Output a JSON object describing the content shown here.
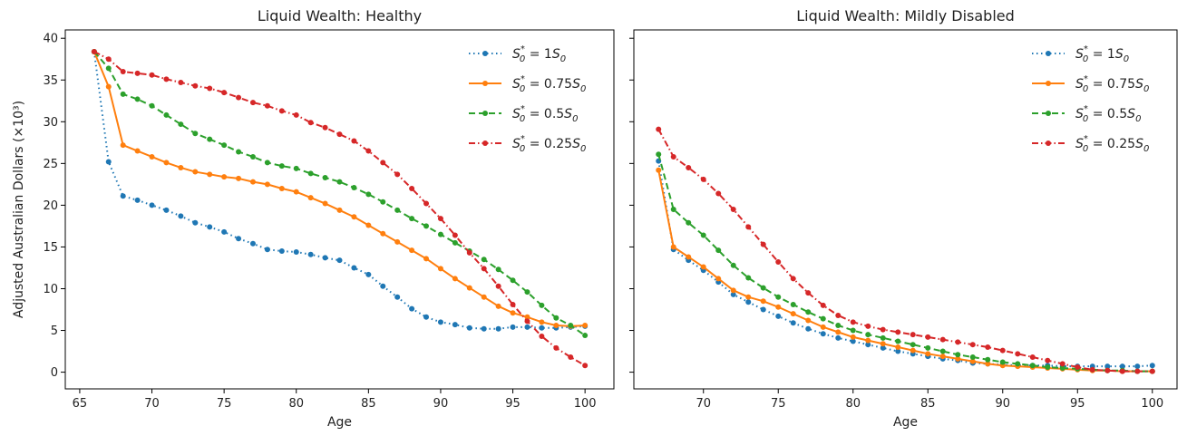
{
  "chart_data": [
    {
      "type": "line",
      "title": "Liquid Wealth: Healthy",
      "xlabel": "Age",
      "ylabel": "Adjusted Australian Dollars (×10³)",
      "xlim": [
        64,
        102
      ],
      "ylim": [
        -2,
        41
      ],
      "xticks": [
        65,
        70,
        75,
        80,
        85,
        90,
        95,
        100
      ],
      "yticks": [
        0,
        5,
        10,
        15,
        20,
        25,
        30,
        35,
        40
      ],
      "grid": false,
      "legend_position": "top-right",
      "x": [
        66,
        67,
        68,
        69,
        70,
        71,
        72,
        73,
        74,
        75,
        76,
        77,
        78,
        79,
        80,
        81,
        82,
        83,
        84,
        85,
        86,
        87,
        88,
        89,
        90,
        91,
        92,
        93,
        94,
        95,
        96,
        97,
        98,
        99,
        100
      ],
      "series": [
        {
          "name": "S0* = 1S0",
          "color": "#1f77b4",
          "dash": "1.5 3.5",
          "values": [
            38.4,
            25.2,
            21.1,
            20.6,
            20.0,
            19.4,
            18.7,
            17.9,
            17.4,
            16.8,
            16.0,
            15.4,
            14.7,
            14.5,
            14.4,
            14.1,
            13.7,
            13.4,
            12.5,
            11.7,
            10.3,
            9.0,
            7.6,
            6.6,
            6.0,
            5.7,
            5.3,
            5.2,
            5.2,
            5.4,
            5.4,
            5.3,
            5.3,
            5.4,
            5.5
          ]
        },
        {
          "name": "S0* = 0.75S0",
          "color": "#ff7f0e",
          "dash": "",
          "values": [
            38.4,
            34.2,
            27.2,
            26.5,
            25.8,
            25.1,
            24.5,
            24.0,
            23.7,
            23.4,
            23.2,
            22.8,
            22.5,
            22.0,
            21.6,
            20.9,
            20.2,
            19.4,
            18.6,
            17.6,
            16.6,
            15.6,
            14.6,
            13.6,
            12.4,
            11.2,
            10.1,
            9.0,
            7.9,
            7.1,
            6.6,
            6.0,
            5.6,
            5.5,
            5.6
          ]
        },
        {
          "name": "S0* = 0.5S0",
          "color": "#2ca02c",
          "dash": "7 4",
          "values": [
            38.4,
            36.4,
            33.3,
            32.7,
            31.9,
            30.8,
            29.7,
            28.6,
            27.9,
            27.2,
            26.4,
            25.8,
            25.1,
            24.7,
            24.4,
            23.8,
            23.3,
            22.8,
            22.1,
            21.3,
            20.4,
            19.4,
            18.4,
            17.5,
            16.5,
            15.5,
            14.5,
            13.5,
            12.3,
            11.0,
            9.6,
            8.0,
            6.5,
            5.6,
            4.4
          ]
        },
        {
          "name": "S0* = 0.25S0",
          "color": "#d62728",
          "dash": "7 3 1.5 3",
          "values": [
            38.4,
            37.5,
            36.0,
            35.8,
            35.6,
            35.1,
            34.7,
            34.3,
            34.0,
            33.5,
            32.9,
            32.3,
            31.9,
            31.3,
            30.8,
            29.9,
            29.3,
            28.5,
            27.7,
            26.5,
            25.1,
            23.7,
            22.0,
            20.2,
            18.4,
            16.4,
            14.3,
            12.4,
            10.3,
            8.1,
            6.1,
            4.3,
            2.9,
            1.8,
            0.8
          ]
        }
      ]
    },
    {
      "type": "line",
      "title": "Liquid Wealth: Mildly Disabled",
      "xlabel": "Age",
      "ylabel": "",
      "xlim": [
        65.35,
        101.65
      ],
      "ylim": [
        -2,
        41
      ],
      "xticks": [
        70,
        75,
        80,
        85,
        90,
        95,
        100
      ],
      "yticks": [
        0,
        5,
        10,
        15,
        20,
        25,
        30,
        35,
        40
      ],
      "grid": false,
      "legend_position": "top-right",
      "x": [
        67,
        68,
        69,
        70,
        71,
        72,
        73,
        74,
        75,
        76,
        77,
        78,
        79,
        80,
        81,
        82,
        83,
        84,
        85,
        86,
        87,
        88,
        89,
        90,
        91,
        92,
        93,
        94,
        95,
        96,
        97,
        98,
        99,
        100
      ],
      "series": [
        {
          "name": "S0* = 1S0",
          "color": "#1f77b4",
          "dash": "1.5 3.5",
          "values": [
            25.3,
            14.7,
            13.4,
            12.2,
            10.8,
            9.3,
            8.4,
            7.5,
            6.7,
            5.9,
            5.2,
            4.6,
            4.1,
            3.7,
            3.3,
            2.9,
            2.5,
            2.2,
            1.9,
            1.6,
            1.4,
            1.1,
            1.0,
            0.9,
            0.8,
            0.8,
            0.8,
            0.7,
            0.7,
            0.7,
            0.7,
            0.7,
            0.7,
            0.8
          ]
        },
        {
          "name": "S0* = 0.75S0",
          "color": "#ff7f0e",
          "dash": "",
          "values": [
            24.2,
            15.0,
            13.8,
            12.6,
            11.2,
            9.8,
            9.0,
            8.5,
            7.8,
            7.0,
            6.2,
            5.4,
            4.8,
            4.2,
            3.8,
            3.4,
            3.0,
            2.6,
            2.2,
            1.9,
            1.6,
            1.3,
            1.0,
            0.8,
            0.7,
            0.6,
            0.5,
            0.4,
            0.3,
            0.2,
            0.2,
            0.1,
            0.1,
            0.1
          ]
        },
        {
          "name": "S0* = 0.5S0",
          "color": "#2ca02c",
          "dash": "7 4",
          "values": [
            26.1,
            19.5,
            17.9,
            16.4,
            14.6,
            12.8,
            11.3,
            10.1,
            9.0,
            8.1,
            7.2,
            6.4,
            5.6,
            5.0,
            4.5,
            4.1,
            3.7,
            3.3,
            2.9,
            2.5,
            2.1,
            1.8,
            1.5,
            1.2,
            1.0,
            0.8,
            0.6,
            0.5,
            0.4,
            0.3,
            0.2,
            0.2,
            0.1,
            0.1
          ]
        },
        {
          "name": "S0* = 0.25S0",
          "color": "#d62728",
          "dash": "7 3 1.5 3",
          "values": [
            29.1,
            25.8,
            24.5,
            23.1,
            21.4,
            19.5,
            17.4,
            15.3,
            13.2,
            11.2,
            9.5,
            8.0,
            6.8,
            6.0,
            5.5,
            5.1,
            4.8,
            4.5,
            4.2,
            3.9,
            3.6,
            3.3,
            3.0,
            2.6,
            2.2,
            1.8,
            1.4,
            1.0,
            0.6,
            0.3,
            0.2,
            0.1,
            0.1,
            0.1
          ]
        }
      ]
    }
  ]
}
